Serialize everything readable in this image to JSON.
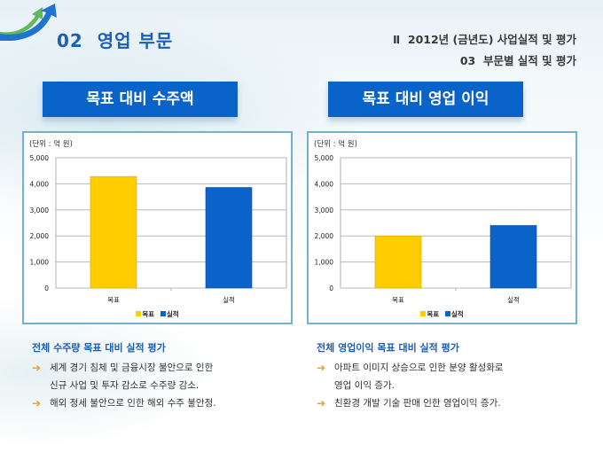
{
  "header": {
    "section_title": "02  영업 부문",
    "breadcrumb_line1": "Ⅱ  2012년 (금년도) 사업실적 및 평가",
    "breadcrumb_line2": "03  부문별 실적 및 평가",
    "logo_icon": "rising-arrows-icon"
  },
  "panels": [
    {
      "title": "목표 대비 수주액",
      "notes": {
        "heading": "전체 수주량 목표 대비 실적 평가",
        "bullets": [
          "세계 경기 침체 및 금융시장 불안으로 인한\n신규 사업 및 투자 감소로 수주량 감소.",
          "해외 정세 불안으로 인한 해외 수주 불안정."
        ]
      }
    },
    {
      "title": "목표 대비 영업 이익",
      "notes": {
        "heading": "전체 영업이익 목표 대비 실적 평가",
        "bullets": [
          "아파트 이미지 상승으로 인한 분양 활성화로\n영업 이익 증가.",
          "친환경 개발 기술 판매 인한 영업이익 증가."
        ]
      }
    }
  ],
  "bullet_icon": "arrow-right-icon",
  "colors": {
    "target": "#ffcc00",
    "actual": "#0a63c9",
    "header_blue": "#0a63c9",
    "title_blue": "#1a5fb4",
    "bullet_orange": "#f29a1a"
  },
  "chart_data": [
    {
      "type": "bar",
      "title": "목표 대비 수주액",
      "unit_label": "(단위 : 억 원)",
      "categories": [
        "목표",
        "실적"
      ],
      "values": [
        4280,
        3860
      ],
      "series_colors": [
        "#ffcc00",
        "#0a63c9"
      ],
      "legend": [
        "목표",
        "실적"
      ],
      "legend_position": "bottom",
      "ylim": [
        0,
        5000
      ],
      "yticks": [
        "0",
        "1,000",
        "2,000",
        "3,000",
        "4,000",
        "5,000"
      ],
      "ytick_values": [
        0,
        1000,
        2000,
        3000,
        4000,
        5000
      ],
      "grid": true,
      "xlabel": "",
      "ylabel": ""
    },
    {
      "type": "bar",
      "title": "목표 대비 영업 이익",
      "unit_label": "(단위 : 억 원)",
      "categories": [
        "목표",
        "실적"
      ],
      "values": [
        2000,
        2400
      ],
      "series_colors": [
        "#ffcc00",
        "#0a63c9"
      ],
      "legend": [
        "목표",
        "실적"
      ],
      "legend_position": "bottom",
      "ylim": [
        0,
        5000
      ],
      "yticks": [
        "0",
        "1,000",
        "2,000",
        "3,000",
        "4,000",
        "5,000"
      ],
      "ytick_values": [
        0,
        1000,
        2000,
        3000,
        4000,
        5000
      ],
      "grid": true,
      "xlabel": "",
      "ylabel": ""
    }
  ]
}
